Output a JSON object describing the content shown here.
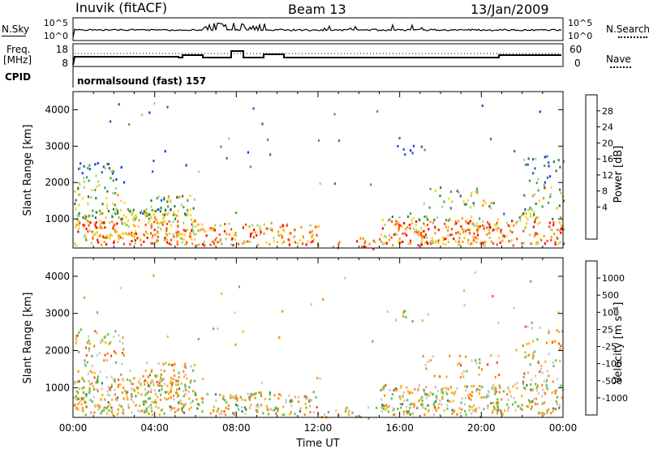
{
  "header": {
    "station": "Inuvik (fitACF)",
    "beam": "Beam 13",
    "date": "13/Jan/2009"
  },
  "strips": {
    "nsky_label": "N.Sky",
    "nsky_ticks": [
      "10^5",
      "10^0"
    ],
    "nsearch_label": "N.Search",
    "nsearch_ticks": [
      "10^5",
      "10^0"
    ],
    "freq_label": "Freq.",
    "freq_unit": "[MHz]",
    "freq_ticks": [
      "18",
      "8"
    ],
    "nave_label": "Nave",
    "nave_ticks": [
      "60",
      "0"
    ],
    "cpid_label": "CPID",
    "cpid_text": "normalsound (fast) 157"
  },
  "chart_data": [
    {
      "type": "heatmap",
      "name": "power-panel",
      "ylabel": "Slant Range [km]",
      "xlabel": "",
      "x_range_hours": [
        0,
        24
      ],
      "ylim": [
        200,
        4500
      ],
      "yticks": [
        "1000",
        "2000",
        "3000",
        "4000"
      ],
      "colorbar": {
        "label": "Power [dB]",
        "ticks": [
          "28",
          "24",
          "20",
          "16",
          "12",
          "8",
          "4"
        ],
        "colors": [
          "#1030ff",
          "#2a50c8",
          "#2c7a50",
          "#48a050",
          "#a6d86a",
          "#ffd020",
          "#ff9010",
          "#ff4a10",
          "#f00a0a"
        ]
      }
    },
    {
      "type": "heatmap",
      "name": "velocity-panel",
      "ylabel": "Slant Range [km]",
      "xlabel": "Time UT",
      "x_range_hours": [
        0,
        24
      ],
      "ylim": [
        200,
        4500
      ],
      "yticks": [
        "1000",
        "2000",
        "3000",
        "4000"
      ],
      "xticks": [
        "00:00",
        "04:00",
        "08:00",
        "12:00",
        "16:00",
        "20:00",
        "00:00"
      ],
      "colorbar": {
        "label": "Velocity [m s⁻¹]",
        "ticks": [
          "1000",
          "500",
          "100",
          "25",
          "-25",
          "-100",
          "-500",
          "-1000"
        ],
        "colors": [
          "#1030e0",
          "#2c6ab0",
          "#2e8a5a",
          "#5ec050",
          "#c8c8c8",
          "#ffb020",
          "#ff8810",
          "#ff5010",
          "#f00a0a"
        ]
      }
    }
  ]
}
